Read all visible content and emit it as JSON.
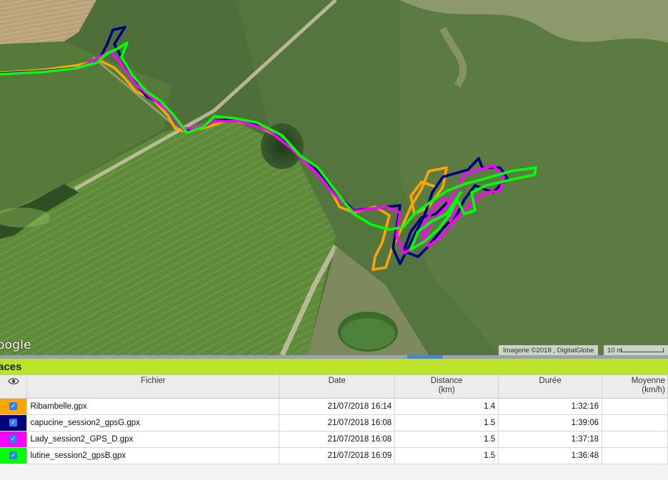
{
  "map": {
    "logo": "oogle",
    "attribution": "Imagerie ©2018 , DigitalGlobe",
    "scale_label": "10 m"
  },
  "panel": {
    "title": "aces",
    "icon": "eye-icon",
    "columns": {
      "fichier": "Fichier",
      "date": "Date",
      "distance": "Distance",
      "distance_unit": "(km)",
      "duree": "Durée",
      "moyenne": "Moyenne",
      "moyenne_unit": "(km/h)"
    },
    "rows": [
      {
        "color": "#ffa500",
        "file": "Ribambelle.gpx",
        "date": "21/07/2018 16:14",
        "distance": "1.4",
        "duration": "1:32:16",
        "checked": true
      },
      {
        "color": "#00007f",
        "file": "capucine_session2_gpsG.gpx",
        "date": "21/07/2018 16:08",
        "distance": "1.5",
        "duration": "1:39:06",
        "checked": true
      },
      {
        "color": "#ff00ff",
        "file": "Lady_session2_GPS_D.gpx",
        "date": "21/07/2018 16:08",
        "distance": "1.5",
        "duration": "1:37:18",
        "checked": true
      },
      {
        "color": "#00ff00",
        "file": "lutine_session2_gpsB.gpx",
        "date": "21/07/2018 16:09",
        "distance": "1.5",
        "duration": "1:36:48",
        "checked": true
      }
    ]
  }
}
